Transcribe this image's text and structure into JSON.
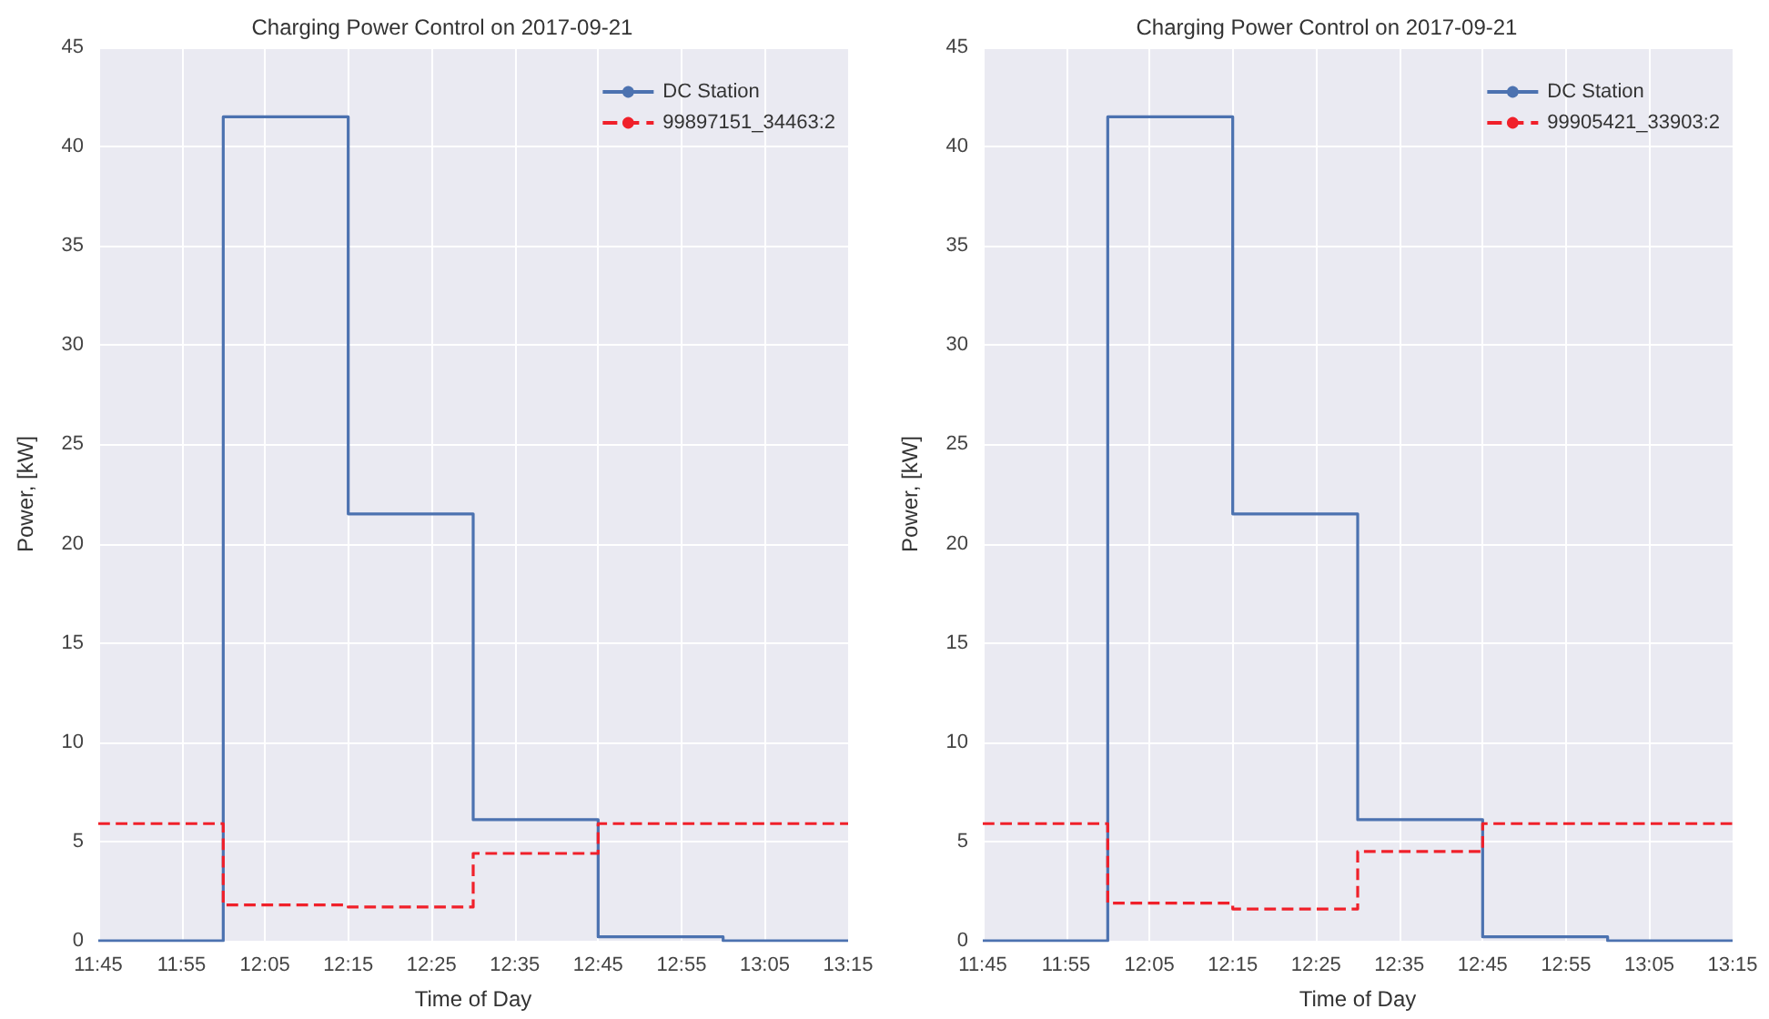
{
  "chart_data": [
    {
      "type": "step",
      "title": "Charging Power Control on 2017-09-21",
      "xlabel": "Time of Day",
      "ylabel": "Power, [kW]",
      "x": [
        11.75,
        12.0,
        12.25,
        12.5,
        12.75,
        13.0,
        13.25
      ],
      "series": [
        {
          "name": "DC Station",
          "color": "#4c72b0",
          "line_style": "solid",
          "values": [
            0,
            41.5,
            21.5,
            6.1,
            0.2,
            0,
            0
          ]
        },
        {
          "name": "99897151_34463:2",
          "color": "#f0202a",
          "line_style": "dashed",
          "values": [
            5.9,
            1.8,
            1.7,
            4.4,
            5.9,
            5.9,
            5.9
          ]
        }
      ],
      "xlim": [
        11.75,
        13.25
      ],
      "xticks": [
        {
          "value": 11.75,
          "label": "11:45"
        },
        {
          "value": 11.9167,
          "label": "11:55"
        },
        {
          "value": 12.0833,
          "label": "12:05"
        },
        {
          "value": 12.25,
          "label": "12:15"
        },
        {
          "value": 12.4167,
          "label": "12:25"
        },
        {
          "value": 12.5833,
          "label": "12:35"
        },
        {
          "value": 12.75,
          "label": "12:45"
        },
        {
          "value": 12.9167,
          "label": "12:55"
        },
        {
          "value": 13.0833,
          "label": "13:05"
        },
        {
          "value": 13.25,
          "label": "13:15"
        }
      ],
      "ylim": [
        0,
        45
      ],
      "yticks": [
        0,
        5,
        10,
        15,
        20,
        25,
        30,
        35,
        40,
        45
      ],
      "grid": true,
      "legend": "top right"
    },
    {
      "type": "step",
      "title": "Charging Power Control on 2017-09-21",
      "xlabel": "Time of Day",
      "ylabel": "Power, [kW]",
      "x": [
        11.75,
        12.0,
        12.25,
        12.5,
        12.75,
        13.0,
        13.25
      ],
      "series": [
        {
          "name": "DC Station",
          "color": "#4c72b0",
          "line_style": "solid",
          "values": [
            0,
            41.5,
            21.5,
            6.1,
            0.2,
            0,
            0
          ]
        },
        {
          "name": "99905421_33903:2",
          "color": "#f0202a",
          "line_style": "dashed",
          "values": [
            5.9,
            1.9,
            1.6,
            4.5,
            5.9,
            5.9,
            5.9
          ]
        }
      ],
      "xlim": [
        11.75,
        13.25
      ],
      "xticks": [
        {
          "value": 11.75,
          "label": "11:45"
        },
        {
          "value": 11.9167,
          "label": "11:55"
        },
        {
          "value": 12.0833,
          "label": "12:05"
        },
        {
          "value": 12.25,
          "label": "12:15"
        },
        {
          "value": 12.4167,
          "label": "12:25"
        },
        {
          "value": 12.5833,
          "label": "12:35"
        },
        {
          "value": 12.75,
          "label": "12:45"
        },
        {
          "value": 12.9167,
          "label": "12:55"
        },
        {
          "value": 13.0833,
          "label": "13:05"
        },
        {
          "value": 13.25,
          "label": "13:15"
        }
      ],
      "ylim": [
        0,
        45
      ],
      "yticks": [
        0,
        5,
        10,
        15,
        20,
        25,
        30,
        35,
        40,
        45
      ],
      "grid": true,
      "legend": "top right"
    }
  ]
}
